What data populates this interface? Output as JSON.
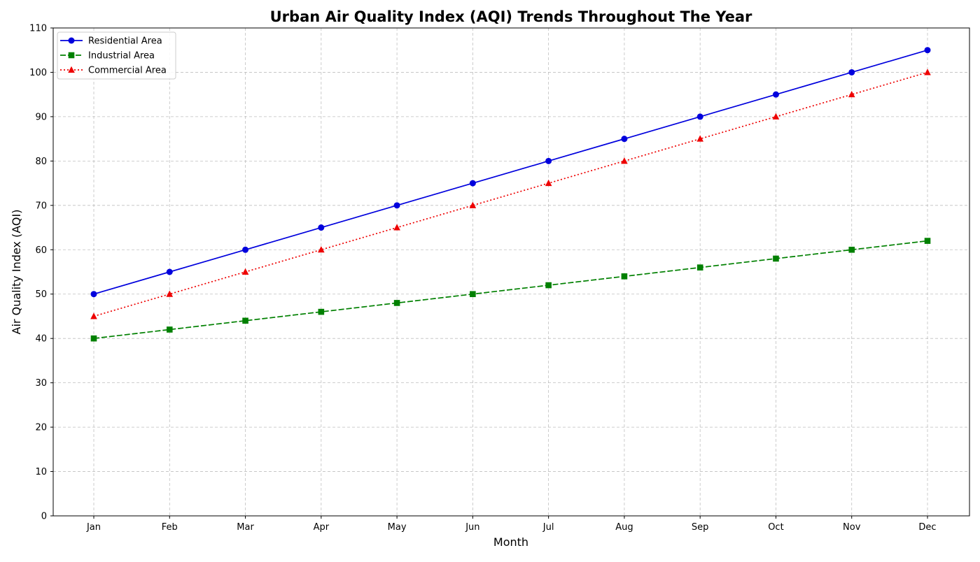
{
  "chart_data": {
    "type": "line",
    "title": "Urban Air Quality Index (AQI) Trends Throughout The Year",
    "xlabel": "Month",
    "ylabel": "Air Quality Index (AQI)",
    "categories": [
      "Jan",
      "Feb",
      "Mar",
      "Apr",
      "May",
      "Jun",
      "Jul",
      "Aug",
      "Sep",
      "Oct",
      "Nov",
      "Dec"
    ],
    "ylim": [
      0,
      110
    ],
    "yticks": [
      "0",
      "10",
      "20",
      "30",
      "40",
      "50",
      "60",
      "70",
      "80",
      "90",
      "100",
      "110"
    ],
    "grid": true,
    "legend_position": "top-left",
    "series": [
      {
        "name": "Residential Area",
        "color": "#0000dd",
        "marker": "circle",
        "line_style": "solid",
        "values": [
          50,
          55,
          60,
          65,
          70,
          75,
          80,
          85,
          90,
          95,
          100,
          105
        ]
      },
      {
        "name": "Industrial Area",
        "color": "#008000",
        "marker": "square",
        "line_style": "dashed",
        "values": [
          40,
          42,
          44,
          46,
          48,
          50,
          52,
          54,
          56,
          58,
          60,
          62
        ]
      },
      {
        "name": "Commercial Area",
        "color": "#ee0000",
        "marker": "triangle",
        "line_style": "dotted",
        "values": [
          45,
          50,
          55,
          60,
          65,
          70,
          75,
          80,
          85,
          90,
          95,
          100
        ]
      }
    ]
  }
}
